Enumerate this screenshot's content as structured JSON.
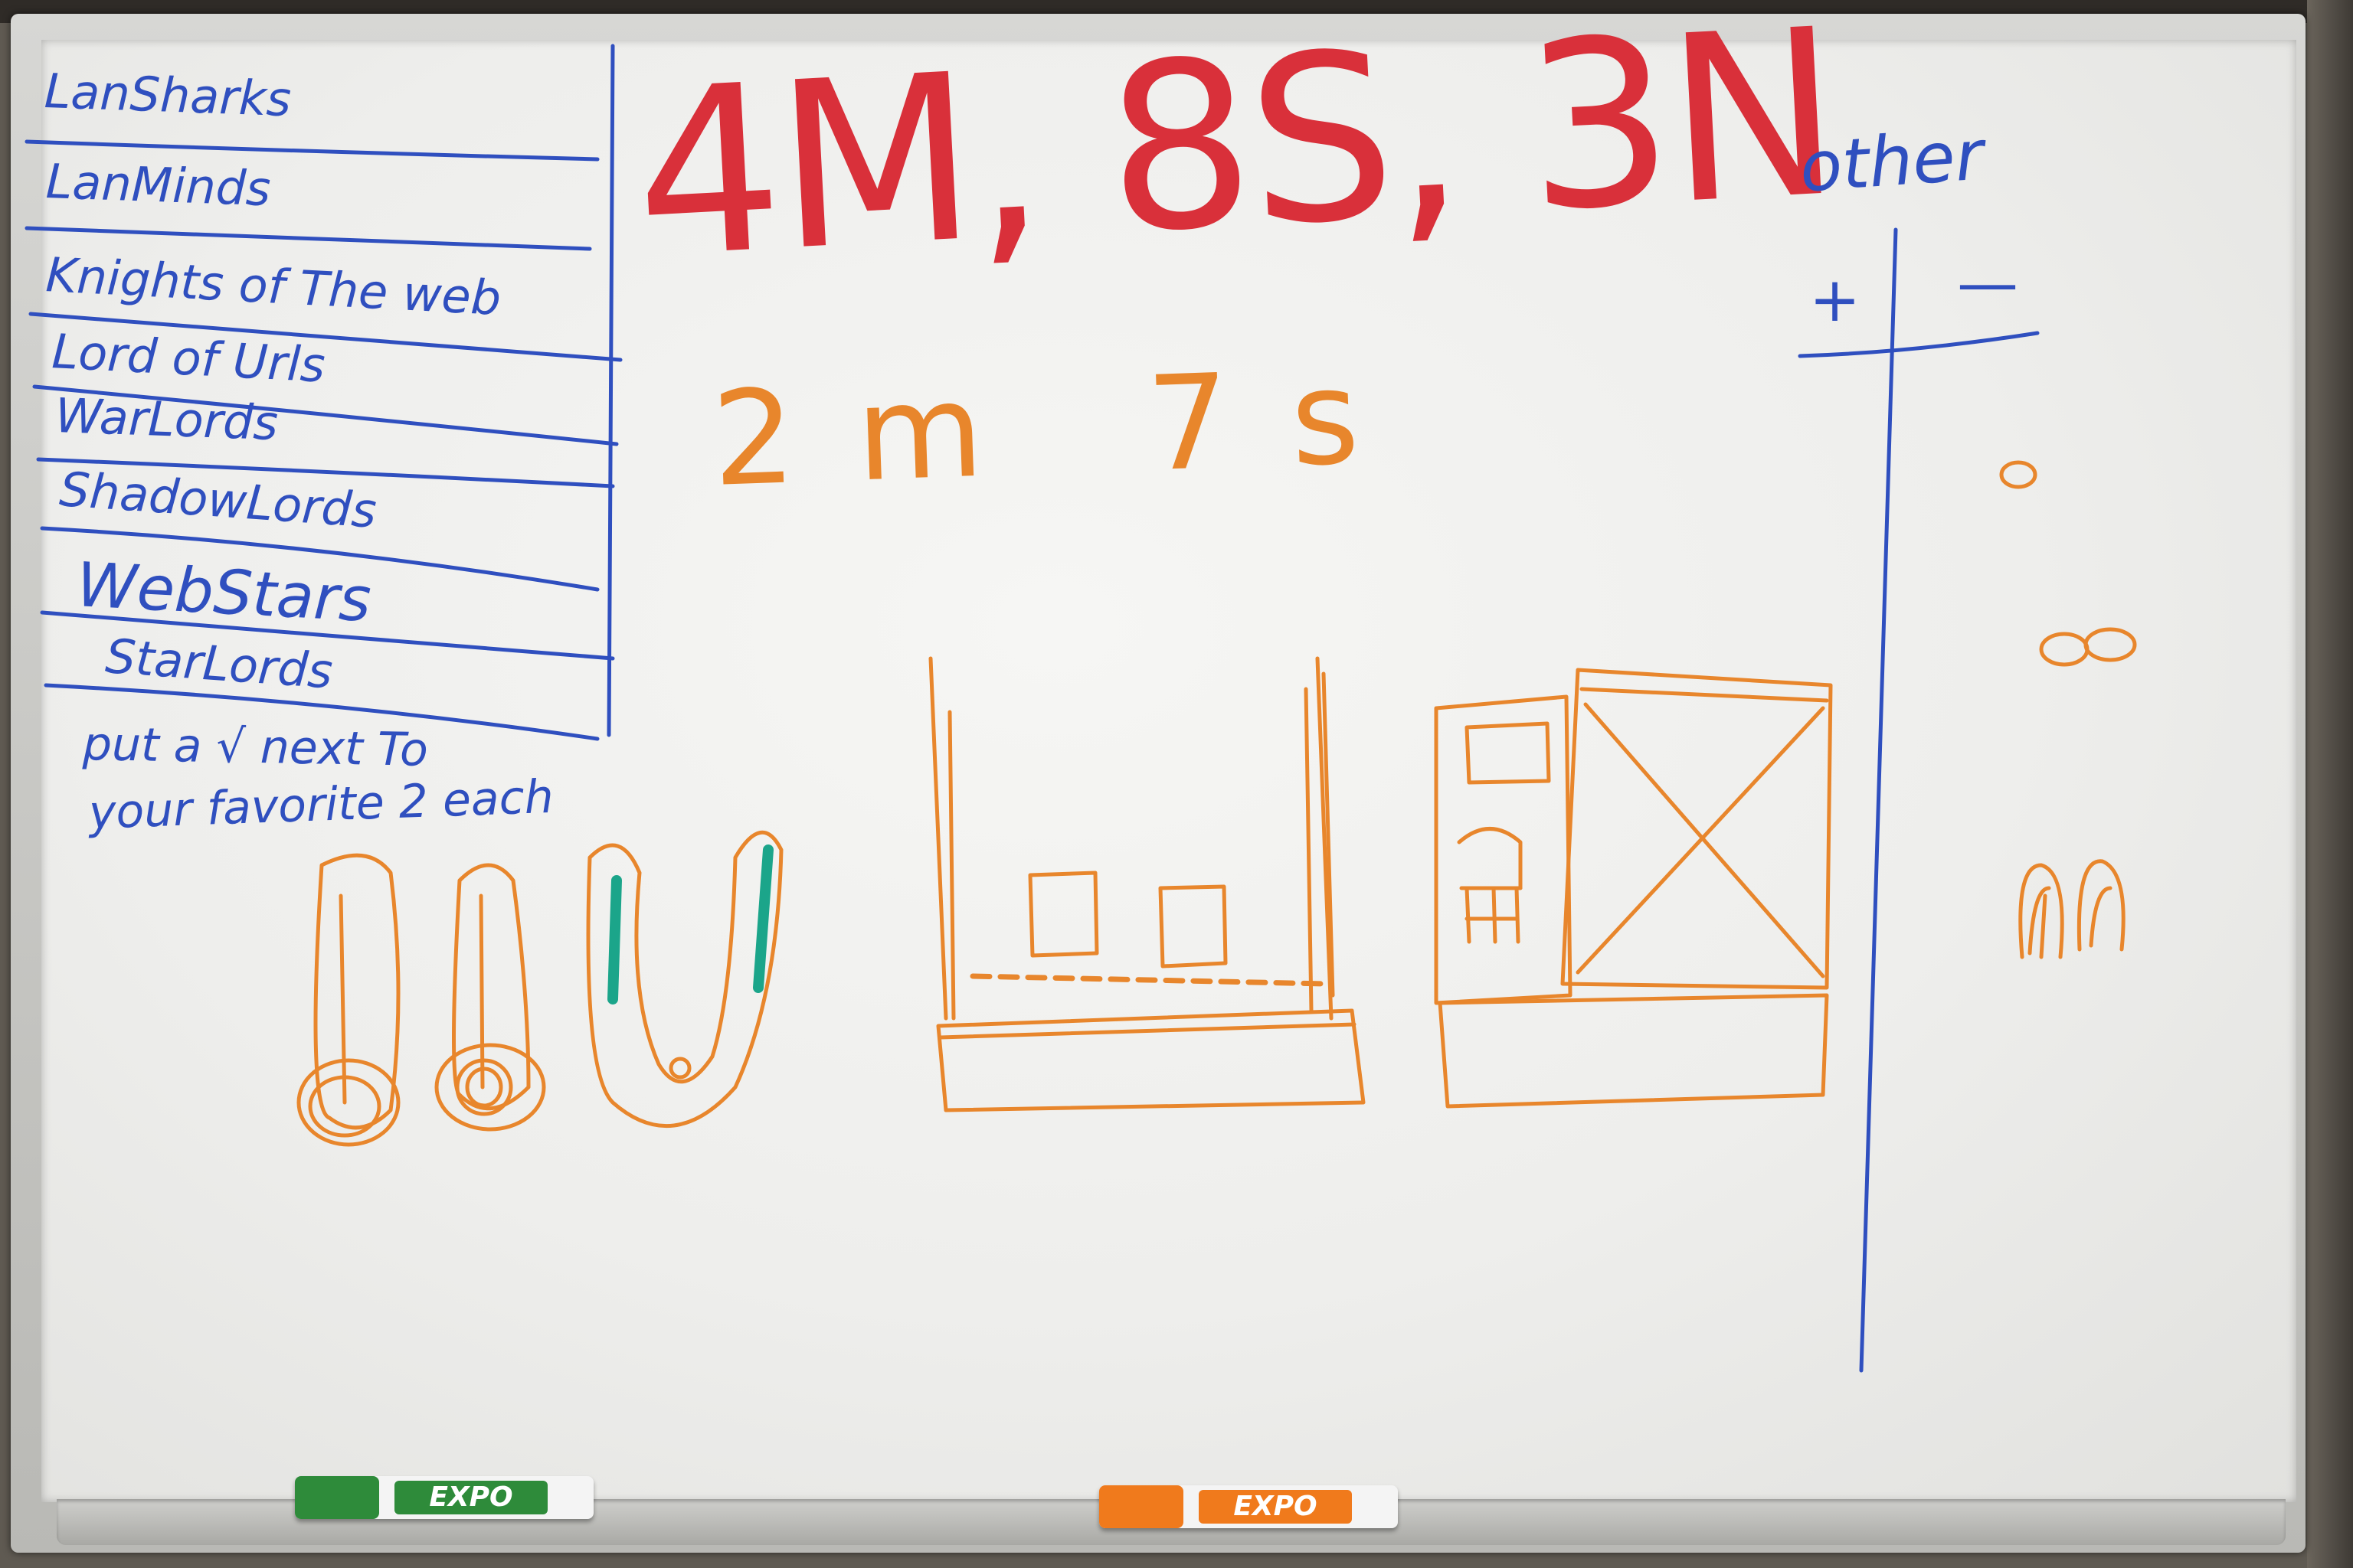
{
  "team_list": [
    "LanSharks",
    "LanMinds",
    "Knights of The web",
    "Lord of Urls",
    "WarLords",
    "ShadowLords",
    "WebStars",
    "StarLords"
  ],
  "instructions": {
    "line1": "put a √ next To",
    "line2": "your favorite 2 each"
  },
  "tally": {
    "main": "4M, 8S, 3N",
    "secondary": "2m 7s"
  },
  "other_column": {
    "heading": "other",
    "plus_label": "+",
    "minus_label": "—"
  },
  "markers": [
    {
      "brand": "EXPO",
      "color": "#2e8b3a"
    },
    {
      "brand": "EXPO",
      "color": "#f07a1c"
    }
  ],
  "colors": {
    "blue_ink": "#2f4fbf",
    "red_ink": "#d9303a",
    "orange_ink": "#e8862c",
    "teal_ink": "#1ba58a"
  }
}
